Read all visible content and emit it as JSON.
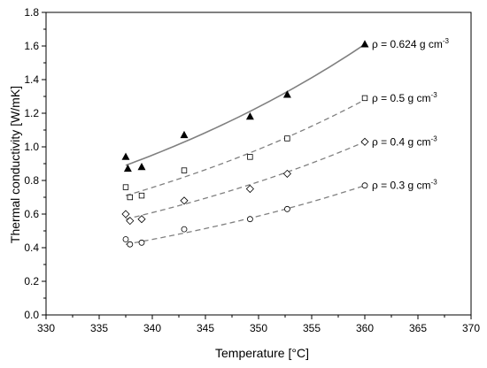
{
  "chart_data": {
    "type": "scatter",
    "title": "",
    "xlabel": "Temperature [°C]",
    "ylabel": "Thermal conductivity [W/mK]",
    "xlim": [
      330,
      370
    ],
    "ylim": [
      0.0,
      1.8
    ],
    "x_ticks": [
      "330",
      "335",
      "340",
      "345",
      "350",
      "355",
      "360",
      "365",
      "370"
    ],
    "y_ticks": [
      "0.0",
      "0.2",
      "0.4",
      "0.6",
      "0.8",
      "1.0",
      "1.2",
      "1.4",
      "1.6",
      "1.8"
    ],
    "grid": false,
    "series": [
      {
        "name": "ρ = 0.624 g cm",
        "unit_exponent": "-3",
        "marker": "filled-triangle",
        "fit_line": "solid",
        "color": "#000000",
        "line_color": "#808080",
        "points": [
          [
            337.5,
            0.94
          ],
          [
            337.7,
            0.87
          ],
          [
            339.0,
            0.88
          ],
          [
            343.0,
            1.07
          ],
          [
            349.2,
            1.18
          ],
          [
            352.7,
            1.31
          ],
          [
            360.0,
            1.61
          ]
        ],
        "fit": [
          [
            337.5,
            0.89
          ],
          [
            360.0,
            1.61
          ]
        ]
      },
      {
        "name": "ρ = 0.5 g cm",
        "unit_exponent": "-3",
        "marker": "open-square",
        "fit_line": "dashed",
        "color": "#000000",
        "line_color": "#808080",
        "points": [
          [
            337.5,
            0.76
          ],
          [
            337.9,
            0.7
          ],
          [
            339.0,
            0.71
          ],
          [
            343.0,
            0.86
          ],
          [
            349.2,
            0.94
          ],
          [
            352.7,
            1.05
          ],
          [
            360.0,
            1.29
          ]
        ],
        "fit": [
          [
            337.5,
            0.71
          ],
          [
            360.0,
            1.28
          ]
        ]
      },
      {
        "name": "ρ = 0.4 g cm",
        "unit_exponent": "-3",
        "marker": "open-diamond",
        "fit_line": "dashed",
        "color": "#000000",
        "line_color": "#808080",
        "points": [
          [
            337.5,
            0.6
          ],
          [
            337.9,
            0.56
          ],
          [
            339.0,
            0.57
          ],
          [
            343.0,
            0.68
          ],
          [
            349.2,
            0.75
          ],
          [
            352.7,
            0.84
          ],
          [
            360.0,
            1.03
          ]
        ],
        "fit": [
          [
            337.5,
            0.57
          ],
          [
            360.0,
            1.03
          ]
        ]
      },
      {
        "name": "ρ = 0.3 g cm",
        "unit_exponent": "-3",
        "marker": "open-circle",
        "fit_line": "dashed",
        "color": "#000000",
        "line_color": "#808080",
        "points": [
          [
            337.5,
            0.45
          ],
          [
            337.9,
            0.42
          ],
          [
            339.0,
            0.43
          ],
          [
            343.0,
            0.51
          ],
          [
            349.2,
            0.57
          ],
          [
            352.7,
            0.63
          ],
          [
            360.0,
            0.77
          ]
        ],
        "fit": [
          [
            337.5,
            0.42
          ],
          [
            360.0,
            0.77
          ]
        ]
      }
    ]
  }
}
